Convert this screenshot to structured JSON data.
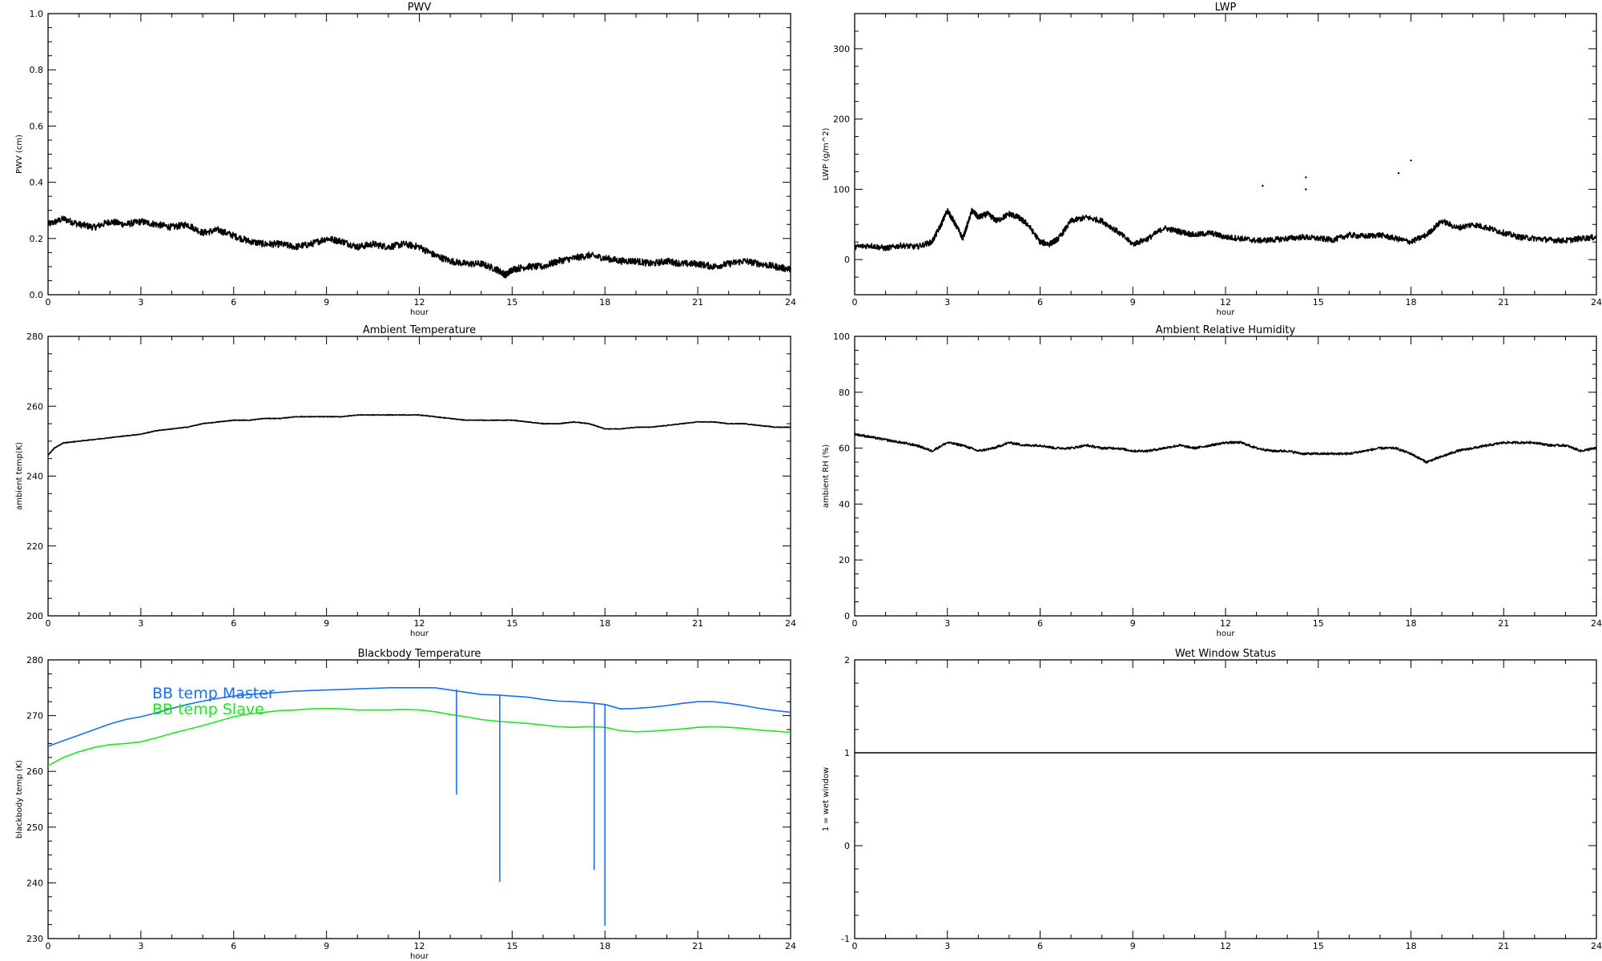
{
  "chart_data": [
    {
      "id": "pwv",
      "type": "line",
      "title": "PWV",
      "xlabel": "hour",
      "ylabel": "PWV (cm)",
      "xlim": [
        0,
        24
      ],
      "ylim": [
        0.0,
        1.0
      ],
      "x_ticks": [
        0,
        3,
        6,
        9,
        12,
        15,
        18,
        21,
        24
      ],
      "y_ticks": [
        0.0,
        0.2,
        0.4,
        0.6,
        0.8,
        1.0
      ],
      "y_tick_labels": [
        "0.0",
        "0.2",
        "0.4",
        "0.6",
        "0.8",
        "1.0"
      ],
      "noise": 0.012,
      "series": [
        {
          "color": "#000000",
          "x": [
            0,
            0.5,
            1,
            1.5,
            2,
            2.5,
            3,
            3.5,
            4,
            4.5,
            5,
            5.5,
            6,
            6.5,
            7,
            7.5,
            8,
            8.5,
            9,
            9.5,
            10,
            10.5,
            11,
            11.5,
            12,
            12.5,
            13,
            13.5,
            14,
            14.5,
            14.8,
            15,
            15.5,
            16,
            16.5,
            17,
            17.5,
            18,
            18.5,
            19,
            19.5,
            20,
            20.5,
            21,
            21.5,
            22,
            22.5,
            23,
            23.5,
            24
          ],
          "y": [
            0.25,
            0.27,
            0.25,
            0.24,
            0.26,
            0.25,
            0.26,
            0.25,
            0.24,
            0.25,
            0.22,
            0.23,
            0.21,
            0.19,
            0.18,
            0.18,
            0.17,
            0.18,
            0.2,
            0.19,
            0.17,
            0.18,
            0.17,
            0.18,
            0.17,
            0.14,
            0.12,
            0.11,
            0.11,
            0.09,
            0.07,
            0.09,
            0.1,
            0.1,
            0.12,
            0.13,
            0.14,
            0.13,
            0.12,
            0.12,
            0.11,
            0.12,
            0.11,
            0.11,
            0.1,
            0.11,
            0.12,
            0.11,
            0.1,
            0.09
          ]
        }
      ]
    },
    {
      "id": "lwp",
      "type": "line",
      "title": "LWP",
      "xlabel": "hour",
      "ylabel": "LWP (g/m^2)",
      "xlim": [
        0,
        24
      ],
      "ylim": [
        -50,
        350
      ],
      "x_ticks": [
        0,
        3,
        6,
        9,
        12,
        15,
        18,
        21,
        24
      ],
      "y_ticks": [
        0,
        100,
        200,
        300
      ],
      "y_tick_labels": [
        "0",
        "100",
        "200",
        "300"
      ],
      "noise": 4,
      "series": [
        {
          "color": "#000000",
          "x": [
            0,
            0.5,
            1,
            1.5,
            2,
            2.5,
            2.8,
            3,
            3.2,
            3.5,
            3.8,
            4,
            4.3,
            4.6,
            5,
            5.3,
            5.6,
            6,
            6.3,
            6.6,
            7,
            7.5,
            8,
            8.5,
            9,
            9.5,
            10,
            10.5,
            11,
            11.5,
            12,
            12.5,
            13,
            13.5,
            14,
            14.5,
            15,
            15.5,
            16,
            16.5,
            17,
            17.5,
            18,
            18.5,
            19,
            19.5,
            20,
            20.5,
            21,
            21.5,
            22,
            22.5,
            23,
            23.5,
            24
          ],
          "y": [
            18,
            20,
            16,
            20,
            18,
            25,
            50,
            70,
            55,
            30,
            70,
            60,
            65,
            55,
            65,
            60,
            50,
            25,
            22,
            30,
            55,
            60,
            55,
            40,
            22,
            30,
            45,
            40,
            35,
            38,
            32,
            30,
            27,
            28,
            30,
            32,
            30,
            28,
            35,
            33,
            35,
            30,
            25,
            35,
            55,
            45,
            50,
            45,
            38,
            32,
            30,
            28,
            27,
            30,
            32
          ]
        }
      ],
      "scatter_points": [
        [
          13.2,
          105
        ],
        [
          14.6,
          117
        ],
        [
          14.6,
          100
        ],
        [
          17.6,
          123
        ],
        [
          18,
          141
        ]
      ]
    },
    {
      "id": "ambient_temp",
      "type": "line",
      "title": "Ambient Temperature",
      "xlabel": "hour",
      "ylabel": "ambient temp(K)",
      "xlim": [
        0,
        24
      ],
      "ylim": [
        200,
        280
      ],
      "x_ticks": [
        0,
        3,
        6,
        9,
        12,
        15,
        18,
        21,
        24
      ],
      "y_ticks": [
        200,
        220,
        240,
        260,
        280
      ],
      "y_tick_labels": [
        "200",
        "220",
        "240",
        "260",
        "280"
      ],
      "noise": 0.1,
      "series": [
        {
          "color": "#000000",
          "x": [
            0,
            0.2,
            0.5,
            1,
            1.5,
            2,
            2.5,
            3,
            3.5,
            4,
            4.5,
            5,
            5.5,
            6,
            6.5,
            7,
            7.5,
            8,
            8.5,
            9,
            9.5,
            10,
            10.5,
            11,
            11.5,
            12,
            12.5,
            13,
            13.5,
            14,
            14.5,
            15,
            15.5,
            16,
            16.5,
            17,
            17.5,
            18,
            18.5,
            19,
            19.5,
            20,
            20.5,
            21,
            21.5,
            22,
            22.5,
            23,
            23.5,
            24
          ],
          "y": [
            246,
            248,
            249.5,
            250,
            250.5,
            251,
            251.5,
            252,
            253,
            253.5,
            254,
            255,
            255.5,
            256,
            256,
            256.5,
            256.5,
            257,
            257,
            257,
            257,
            257.5,
            257.5,
            257.5,
            257.5,
            257.5,
            257,
            256.5,
            256,
            256,
            256,
            256,
            255.5,
            255,
            255,
            255.5,
            255,
            253.5,
            253.5,
            254,
            254,
            254.5,
            255,
            255.5,
            255.5,
            255,
            255,
            254.5,
            254,
            254
          ]
        }
      ]
    },
    {
      "id": "ambient_rh",
      "type": "line",
      "title": "Ambient Relative Humidity",
      "xlabel": "hour",
      "ylabel": "ambient RH (%)",
      "xlim": [
        0,
        24
      ],
      "ylim": [
        0,
        100
      ],
      "x_ticks": [
        0,
        3,
        6,
        9,
        12,
        15,
        18,
        21,
        24
      ],
      "y_ticks": [
        0,
        20,
        40,
        60,
        80,
        100
      ],
      "y_tick_labels": [
        "0",
        "20",
        "40",
        "60",
        "80",
        "100"
      ],
      "noise": 0.4,
      "series": [
        {
          "color": "#000000",
          "x": [
            0,
            0.5,
            1,
            1.5,
            2,
            2.5,
            3,
            3.5,
            4,
            4.5,
            5,
            5.5,
            6,
            6.5,
            7,
            7.5,
            8,
            8.5,
            9,
            9.5,
            10,
            10.5,
            11,
            11.5,
            12,
            12.5,
            13,
            13.5,
            14,
            14.5,
            15,
            15.5,
            16,
            16.5,
            17,
            17.5,
            18,
            18.5,
            19,
            19.5,
            20,
            20.5,
            21,
            21.5,
            22,
            22.5,
            23,
            23.5,
            24
          ],
          "y": [
            65,
            64,
            63,
            62,
            61,
            59,
            62,
            61,
            59,
            60,
            62,
            61,
            61,
            60,
            60,
            61,
            60,
            60,
            59,
            59,
            60,
            61,
            60,
            61,
            62,
            62,
            60,
            59,
            59,
            58,
            58,
            58,
            58,
            59,
            60,
            60,
            58,
            55,
            57,
            59,
            60,
            61,
            62,
            62,
            62,
            61,
            61,
            59,
            60
          ]
        }
      ]
    },
    {
      "id": "bb_temp",
      "type": "line",
      "title": "Blackbody Temperature",
      "xlabel": "hour",
      "ylabel": "blackbody temp (K)",
      "xlim": [
        0,
        24
      ],
      "ylim": [
        230,
        280
      ],
      "x_ticks": [
        0,
        3,
        6,
        9,
        12,
        15,
        18,
        21,
        24
      ],
      "y_ticks": [
        230,
        240,
        250,
        260,
        270,
        280
      ],
      "y_tick_labels": [
        "230",
        "240",
        "250",
        "260",
        "270",
        "280"
      ],
      "noise": 0,
      "legend": [
        {
          "name": "BB temp Master",
          "color": "#1a6fe6"
        },
        {
          "name": "BB temp Slave",
          "color": "#22e022"
        }
      ],
      "series": [
        {
          "name": "BB temp Master",
          "color": "#1a6fe6",
          "x": [
            0,
            0.5,
            1,
            1.5,
            2,
            2.5,
            3,
            3.5,
            4,
            4.5,
            5,
            5.5,
            6,
            6.5,
            7,
            7.5,
            8,
            8.5,
            9,
            9.5,
            10,
            10.5,
            11,
            11.5,
            12,
            12.5,
            13,
            13.5,
            14,
            14.5,
            15,
            15.5,
            16,
            16.5,
            17,
            17.5,
            18,
            18.5,
            19,
            19.5,
            20,
            20.5,
            21,
            21.5,
            22,
            22.5,
            23,
            23.5,
            24
          ],
          "y": [
            264.5,
            265.5,
            266.5,
            267.5,
            268.5,
            269.3,
            269.8,
            270.5,
            271.3,
            272,
            272.6,
            273.1,
            273.5,
            273.8,
            274,
            274.2,
            274.4,
            274.5,
            274.6,
            274.7,
            274.8,
            274.9,
            275,
            275,
            275,
            275,
            274.6,
            274.2,
            273.8,
            273.7,
            273.5,
            273.3,
            272.9,
            272.6,
            272.5,
            272.3,
            272,
            271.2,
            271.3,
            271.5,
            271.8,
            272.2,
            272.5,
            272.5,
            272.2,
            271.8,
            271.3,
            270.9,
            270.6
          ]
        },
        {
          "name": "BB temp Slave",
          "color": "#22e022",
          "x": [
            0,
            0.5,
            1,
            1.5,
            2,
            2.5,
            3,
            3.5,
            4,
            4.5,
            5,
            5.5,
            6,
            6.5,
            7,
            7.5,
            8,
            8.5,
            9,
            9.5,
            10,
            10.5,
            11,
            11.5,
            12,
            12.5,
            13,
            13.5,
            14,
            14.5,
            15,
            15.5,
            16,
            16.5,
            17,
            17.5,
            18,
            18.5,
            19,
            19.5,
            20,
            20.5,
            21,
            21.5,
            22,
            22.5,
            23,
            23.5,
            24
          ],
          "y": [
            261,
            262.5,
            263.5,
            264.3,
            264.8,
            265,
            265.3,
            266,
            266.8,
            267.5,
            268.2,
            269,
            269.8,
            270.3,
            270.6,
            270.9,
            271,
            271.2,
            271.3,
            271.2,
            271,
            271,
            271,
            271.1,
            271,
            270.7,
            270.2,
            269.8,
            269.3,
            269,
            268.8,
            268.6,
            268.3,
            268,
            267.9,
            268,
            267.9,
            267.3,
            267.1,
            267.2,
            267.4,
            267.6,
            267.9,
            268,
            267.9,
            267.7,
            267.4,
            267.2,
            267
          ]
        }
      ],
      "spikes": [
        {
          "x": 13.2,
          "top": 274.7,
          "bottom": 255.8,
          "color": "#1a6fe6"
        },
        {
          "x": 14.6,
          "top": 273.6,
          "bottom": 240.2,
          "color": "#1a6fe6"
        },
        {
          "x": 17.65,
          "top": 272.3,
          "bottom": 242.3,
          "color": "#1a6fe6"
        },
        {
          "x": 18.0,
          "top": 272.0,
          "bottom": 232.3,
          "color": "#1a6fe6"
        }
      ]
    },
    {
      "id": "wet_window",
      "type": "line",
      "title": "Wet Window Status",
      "xlabel": "",
      "ylabel": "1 = wet window",
      "xlim": [
        0,
        24
      ],
      "ylim": [
        -1,
        2
      ],
      "x_ticks": [
        0,
        3,
        6,
        9,
        12,
        15,
        18,
        21,
        24
      ],
      "y_ticks": [
        -1,
        0,
        1,
        2
      ],
      "y_tick_labels": [
        "-1",
        "0",
        "1",
        "2"
      ],
      "noise": 0,
      "series": [
        {
          "color": "#000000",
          "x": [
            0,
            24
          ],
          "y": [
            1,
            1
          ]
        }
      ]
    }
  ]
}
